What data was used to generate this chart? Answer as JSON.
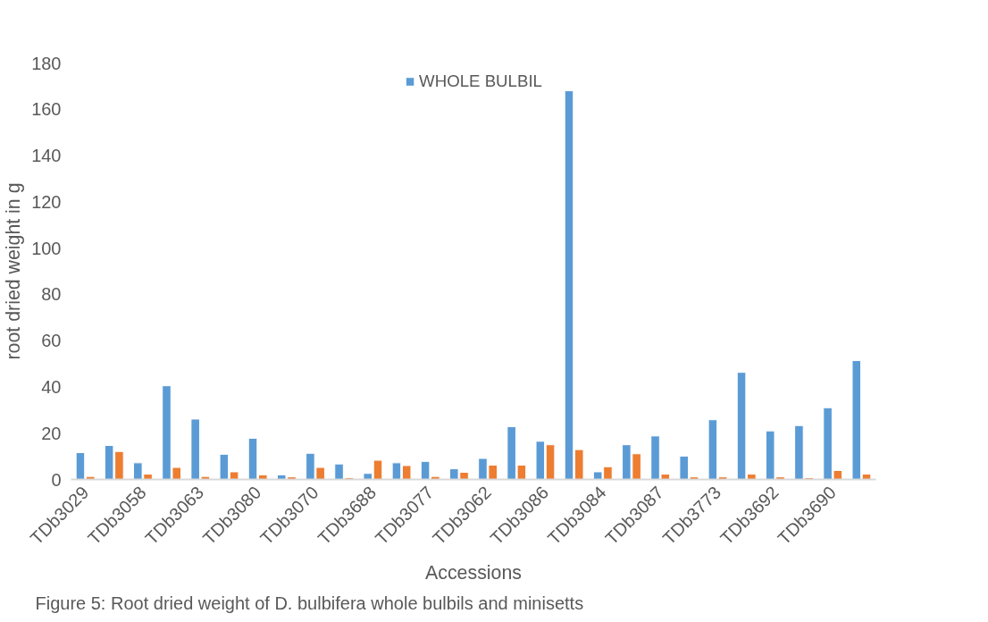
{
  "chart_data": {
    "type": "bar",
    "xlabel": "Accessions",
    "ylabel": "root dried weight in g",
    "annotations": [
      "Figure 5: Root dried weight of D. bulbifera whole bulbils and minisetts"
    ],
    "categories": [
      "TDb3029",
      null,
      "TDb3058",
      null,
      "TDb3063",
      null,
      "TDb3080",
      null,
      "TDb3070",
      null,
      "TDb3688",
      null,
      "TDb3077",
      null,
      "TDb3062",
      null,
      "TDb3086",
      null,
      "TDb3084",
      null,
      "TDb3087",
      null,
      "TDb3773",
      null,
      "TDb3692",
      null,
      "TDb3690",
      null
    ],
    "series": [
      {
        "name": "WHOLE BULBIL",
        "color": "#5b9bd5",
        "values": [
          11.6,
          14.7,
          7.2,
          40.5,
          26.1,
          10.9,
          17.8,
          2.0,
          11.3,
          6.7,
          2.6,
          7.2,
          7.8,
          4.6,
          9.1,
          22.8,
          16.5,
          168,
          3.3,
          15.0,
          18.8,
          10.1,
          25.8,
          46.3,
          21.0,
          23.3,
          31.0,
          51.4
        ]
      },
      {
        "color": "#ed7d31",
        "values": [
          1.3,
          12.1,
          2.3,
          5.2,
          1.3,
          3.3,
          2.0,
          1.1,
          5.2,
          0.8,
          8.3,
          6.0,
          1.3,
          3.1,
          6.2,
          6.2,
          15.0,
          12.9,
          5.5,
          11.1,
          2.3,
          1.1,
          1.1,
          2.3,
          1.1,
          0.8,
          3.9,
          2.3
        ]
      }
    ],
    "ylim": [
      0,
      180
    ],
    "yticks": [
      0,
      20,
      40,
      60,
      80,
      100,
      120,
      140,
      160,
      180
    ],
    "grid": false,
    "legend": "top"
  }
}
